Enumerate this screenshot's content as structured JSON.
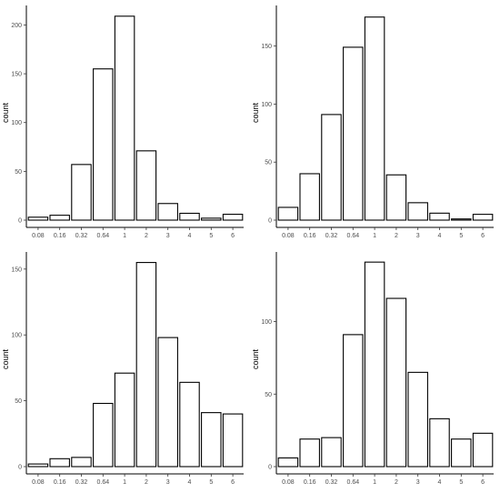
{
  "chart_data": [
    {
      "type": "bar",
      "categories": [
        "0.08",
        "0.16",
        "0.32",
        "0.64",
        "1",
        "2",
        "3",
        "4",
        "5",
        "6"
      ],
      "values": [
        3,
        5,
        57,
        155,
        209,
        71,
        17,
        7,
        2,
        6
      ],
      "ylabel": "count",
      "ylim": [
        0,
        220
      ],
      "yticks": [
        0,
        50,
        100,
        150,
        200
      ]
    },
    {
      "type": "bar",
      "categories": [
        "0.08",
        "0.16",
        "0.32",
        "0.64",
        "1",
        "2",
        "3",
        "4",
        "5",
        "6"
      ],
      "values": [
        11,
        40,
        91,
        149,
        175,
        39,
        15,
        6,
        1,
        5
      ],
      "ylabel": "count",
      "ylim": [
        0,
        185
      ],
      "yticks": [
        0,
        50,
        100,
        150
      ]
    },
    {
      "type": "bar",
      "categories": [
        "0.08",
        "0.16",
        "0.32",
        "0.64",
        "1",
        "2",
        "3",
        "4",
        "5",
        "6"
      ],
      "values": [
        2,
        6,
        7,
        48,
        71,
        155,
        98,
        64,
        41,
        40
      ],
      "ylabel": "count",
      "ylim": [
        0,
        163
      ],
      "yticks": [
        0,
        50,
        100,
        150
      ]
    },
    {
      "type": "bar",
      "categories": [
        "0.08",
        "0.16",
        "0.32",
        "0.64",
        "1",
        "2",
        "3",
        "4",
        "5",
        "6"
      ],
      "values": [
        6,
        19,
        20,
        91,
        141,
        116,
        65,
        33,
        19,
        23
      ],
      "ylabel": "count",
      "ylim": [
        0,
        148
      ],
      "yticks": [
        0,
        50,
        100
      ]
    }
  ]
}
